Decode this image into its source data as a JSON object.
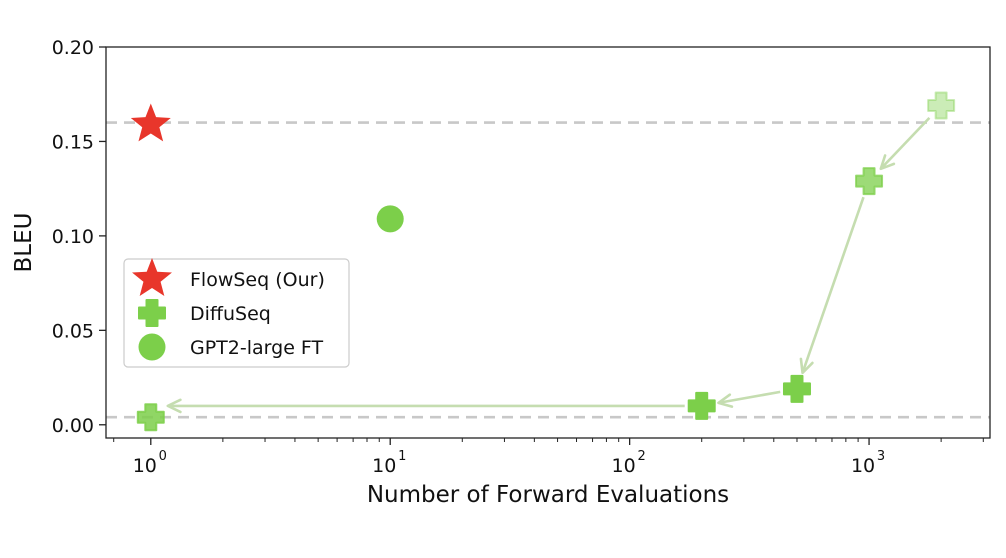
{
  "chart_data": {
    "type": "scatter",
    "xscale": "log",
    "xlim": [
      0.65,
      3200
    ],
    "ylim": [
      -0.007,
      0.2
    ],
    "xlabel": "Number of Forward Evaluations",
    "ylabel": "BLEU",
    "x_ticks": [
      {
        "value": 1,
        "base": "10",
        "exp": "0"
      },
      {
        "value": 10,
        "base": "10",
        "exp": "1"
      },
      {
        "value": 100,
        "base": "10",
        "exp": "2"
      },
      {
        "value": 1000,
        "base": "10",
        "exp": "3"
      }
    ],
    "y_ticks": [
      {
        "value": 0.0,
        "label": "0.00"
      },
      {
        "value": 0.05,
        "label": "0.05"
      },
      {
        "value": 0.1,
        "label": "0.10"
      },
      {
        "value": 0.15,
        "label": "0.15"
      },
      {
        "value": 0.2,
        "label": "0.20"
      }
    ],
    "reference_lines": [
      0.16,
      0.004
    ],
    "series": [
      {
        "name": "FlowSeq (Our)",
        "marker": "star",
        "color": "#e8362b",
        "points": [
          {
            "x": 1,
            "y": 0.159
          }
        ]
      },
      {
        "name": "DiffuSeq",
        "marker": "plus",
        "color": "#7ccf4a",
        "points": [
          {
            "x": 2000,
            "y": 0.169,
            "alpha": 0.4
          },
          {
            "x": 1000,
            "y": 0.129,
            "alpha": 0.75
          },
          {
            "x": 500,
            "y": 0.019,
            "alpha": 1.0
          },
          {
            "x": 200,
            "y": 0.01,
            "alpha": 1.0
          },
          {
            "x": 1,
            "y": 0.004,
            "alpha": 0.85
          }
        ]
      },
      {
        "name": "GPT2-large FT",
        "marker": "circle",
        "color": "#7ccf4a",
        "points": [
          {
            "x": 10,
            "y": 0.109
          }
        ]
      }
    ],
    "arrows": [
      {
        "from": [
          2000,
          0.169
        ],
        "to": [
          1000,
          0.129
        ]
      },
      {
        "from": [
          1000,
          0.129
        ],
        "to": [
          500,
          0.019
        ]
      },
      {
        "from": [
          500,
          0.019
        ],
        "to": [
          200,
          0.01
        ]
      },
      {
        "from": [
          200,
          0.01
        ],
        "to": [
          1,
          0.01
        ]
      }
    ],
    "legend_position": "center-left",
    "grid": false,
    "colors": {
      "flowseq": "#e8362b",
      "diffuseq": "#7ccf4a",
      "gpt2": "#7ccf4a",
      "arrow": "#c5ddb0",
      "refline": "#c8c8c8"
    }
  }
}
